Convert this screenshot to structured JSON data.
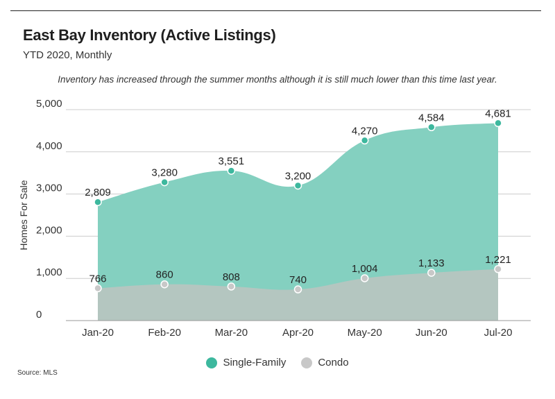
{
  "title": "East Bay Inventory (Active Listings)",
  "subtitle": "YTD 2020, Monthly",
  "annotation": "Inventory has increased through the summer months although it is still much lower than this time last year.",
  "source": "Source: MLS",
  "colors": {
    "single_family_fill": "#84d0c0",
    "single_family_point": "#3db89e",
    "condo_fill": "#b4c6c0",
    "condo_point": "#c8c8c8",
    "grid": "#cccccc",
    "axis": "#999999"
  },
  "chart_data": {
    "type": "area",
    "categories": [
      "Jan-20",
      "Feb-20",
      "Mar-20",
      "Apr-20",
      "May-20",
      "Jun-20",
      "Jul-20"
    ],
    "series": [
      {
        "name": "Single-Family",
        "values": [
          2809,
          3280,
          3551,
          3200,
          4270,
          4584,
          4681
        ],
        "labels": [
          "2,809",
          "3,280",
          "3,551",
          "3,200",
          "4,270",
          "4,584",
          "4,681"
        ]
      },
      {
        "name": "Condo",
        "values": [
          766,
          860,
          808,
          740,
          1004,
          1133,
          1221
        ],
        "labels": [
          "766",
          "860",
          "808",
          "740",
          "1,004",
          "1,133",
          "1,221"
        ]
      }
    ],
    "ylabel": "Homes For Sale",
    "yticks": [
      0,
      1000,
      2000,
      3000,
      4000,
      5000
    ],
    "ytick_labels": [
      "0",
      "1,000",
      "2,000",
      "3,000",
      "4,000",
      "5,000"
    ],
    "ylim": [
      0,
      5000
    ],
    "grid": true,
    "legend_position": "bottom"
  }
}
